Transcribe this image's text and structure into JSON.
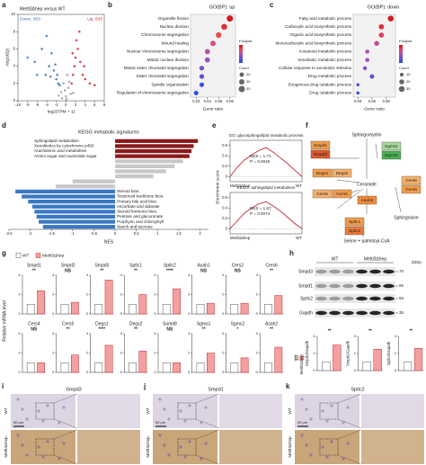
{
  "figure": {
    "panels": [
      "a",
      "b",
      "c",
      "d",
      "e",
      "f",
      "g",
      "h",
      "i",
      "j",
      "k"
    ]
  },
  "chart_data": [
    {
      "type": "scatter",
      "title": "Mettl3Δhep versus WT",
      "annotations": [
        "Down, 853",
        "Up, 833"
      ],
      "xlabel": "log2(TPM + 1)",
      "ylabel": "-log10(Q)",
      "xlim": [
        -10,
        8
      ],
      "xticks": [
        -10,
        -8,
        -6,
        -4,
        -2,
        0,
        2,
        4,
        6,
        8
      ],
      "ylim": [
        0,
        10
      ],
      "yticks": [
        0,
        2,
        4,
        6,
        8,
        10
      ],
      "series": [
        {
          "color": "#2f6fad",
          "x": [
            -8,
            -6.5,
            -5,
            -4.2,
            -3.5,
            -3,
            -2.5,
            -2,
            -1.6,
            -1.3,
            -4,
            -3.2,
            -2.2,
            -6,
            -1.8
          ],
          "values": [
            5,
            4.5,
            6,
            3,
            4,
            5.5,
            3.5,
            2.5,
            2,
            1.8,
            7.5,
            2.8,
            4.2,
            3,
            3
          ]
        },
        {
          "color": "#c0282d",
          "x": [
            1.2,
            1.5,
            1.8,
            2,
            2.5,
            3,
            3.5,
            4,
            5,
            6,
            2.2,
            1.4,
            3.8,
            2.8
          ],
          "values": [
            2,
            3,
            4,
            5,
            6,
            4.5,
            3,
            2.5,
            2,
            1.8,
            7,
            5.5,
            4,
            8
          ]
        },
        {
          "color": "#9e9e9e",
          "x": [
            -1,
            -0.5,
            0,
            0.5,
            1,
            -0.8,
            0.3,
            0.7,
            -0.2,
            0.1,
            -1.5,
            1.5
          ],
          "values": [
            1,
            2,
            0.5,
            1.5,
            0.8,
            0.3,
            3,
            2.2,
            1.2,
            0.2,
            0.6,
            0.9
          ]
        }
      ]
    },
    {
      "type": "dot",
      "title": "GO(BP): up",
      "xlabel": "Gene ratio",
      "xlim": [
        0.025,
        0.065
      ],
      "xticks": [
        0.03,
        0.04,
        0.05,
        0.06
      ],
      "categories": [
        "Organelle fission",
        "Nuclear division",
        "Chromosome segregation",
        "Wound healing",
        "Nuclear chromosome segregation",
        "Mitotic nuclear division",
        "Mitotic sister chromatid segregation",
        "Sister chromatid segregation",
        "Spindle organization",
        "Regulation of chromosome segregation"
      ],
      "values": [
        0.06,
        0.055,
        0.05,
        0.045,
        0.04,
        0.04,
        0.035,
        0.035,
        0.035,
        0.03
      ],
      "sizes": [
        40,
        36,
        33,
        30,
        27,
        26,
        23,
        22,
        22,
        20
      ],
      "colors": [
        "#d7191c",
        "#e0303a",
        "#e64a50",
        "#d94f8a",
        "#b850a8",
        "#9a50c0",
        "#7a52cc",
        "#5a50d6",
        "#3c4fe0",
        "#2c4ae8"
      ],
      "color_legend_title": "P.adjust",
      "size_legend_title": "Count",
      "size_legend": [
        20,
        30,
        40
      ]
    },
    {
      "type": "dot",
      "title": "GO(BP): down",
      "xlabel": "Gene ratio",
      "xlim": [
        0.02,
        0.11
      ],
      "xticks": [
        0.03,
        0.06,
        0.09
      ],
      "categories": [
        "Fatty acid metabolic process",
        "Carboxylic acid biosynthetic process",
        "Organic acid biosynthetic process",
        "Monocarboxylic acid biosynthetic process",
        "Icosanoid metabolic process",
        "Xenobiotic metabolic process",
        "Cellular response to xenobiotic stimulus",
        "Drug metabolic process",
        "Exogenous drug catabolic process",
        "Drug catabolic process"
      ],
      "values": [
        0.1,
        0.08,
        0.08,
        0.07,
        0.05,
        0.05,
        0.045,
        0.06,
        0.03,
        0.03
      ],
      "sizes": [
        35,
        28,
        28,
        25,
        18,
        17,
        16,
        21,
        10,
        10
      ],
      "colors": [
        "#d7191c",
        "#dd2e40",
        "#e04060",
        "#c84890",
        "#b050a8",
        "#9850bc",
        "#8052c8",
        "#6850d2",
        "#4a4fdc",
        "#2c4ae8"
      ],
      "color_legend_title": "P.adjust",
      "size_legend_title": "Count",
      "size_legend": [
        15,
        25,
        35
      ]
    },
    {
      "type": "hbar",
      "title": "KEGG metabolic signatures",
      "xlabel": "NES",
      "xlim": [
        -2.5,
        2.2
      ],
      "xticks": [
        -2.5,
        -2,
        -1.5,
        -1,
        -0.5,
        0,
        0.5,
        1,
        1.5,
        2
      ],
      "categories": [
        "Sphingolipid metabolism",
        "Xenobiotics by cytochrome p450",
        "Arachidonic acid metabolism",
        "Amino sugar and nucleotide sugar",
        null,
        null,
        null,
        null,
        null,
        null,
        "Steroid bios.",
        "Terpenoid backbone bios.",
        "Primary bile acid bios.",
        "Ascorbate and aldarate",
        "Steroid hormone bios.",
        "Pentose and glucuronate",
        "Porphyrin and chlorophyll",
        "Starch and sucrose"
      ],
      "values": [
        1.95,
        1.85,
        1.8,
        1.75,
        1.6,
        1.4,
        1.2,
        0.9,
        -1.0,
        -1.4,
        -2.35,
        -2.2,
        -2.05,
        -1.95,
        -1.9,
        -1.85,
        -1.8,
        -1.7
      ],
      "colors": [
        "#8b1a1a",
        "#8b1a1a",
        "#8b1a1a",
        "#8b1a1a",
        "#c8c8c8",
        "#c8c8c8",
        "#c8c8c8",
        "#c8c8c8",
        "#c8c8c8",
        "#c8c8c8",
        "#3a78c2",
        "#3a78c2",
        "#3a78c2",
        "#3a78c2",
        "#3a78c2",
        "#3a78c2",
        "#3a78c2",
        "#3a78c2"
      ]
    },
    {
      "type": "gsea",
      "title": "GO: glycosphingolipid metabolic process",
      "annotations": [
        "NES = 1.71",
        "P = 0.0045"
      ],
      "ylabel": "Enrichment score",
      "left_label": "Mettl3Δhep",
      "right_label": "WT",
      "color": "#c0282d",
      "xlim": [
        0,
        100
      ],
      "ylim": [
        -0.1,
        0.7
      ],
      "yticks": [
        0,
        0.2,
        0.4,
        0.6
      ],
      "x": [
        0,
        10,
        20,
        30,
        40,
        50,
        60,
        70,
        80,
        90,
        100
      ],
      "values": [
        0,
        0.18,
        0.32,
        0.42,
        0.5,
        0.56,
        0.47,
        0.36,
        0.25,
        0.12,
        0
      ]
    },
    {
      "type": "gsea",
      "title": "KEGG: sphingolipid metabolism",
      "annotations": [
        "NES = 1.67",
        "P = 0.0074"
      ],
      "left_label": "Mettl3Δhep",
      "right_label": "WT",
      "color": "#c0282d",
      "xlim": [
        0,
        100
      ],
      "ylim": [
        -0.1,
        0.7
      ],
      "yticks": [
        0,
        0.2,
        0.4,
        0.6
      ],
      "x": [
        0,
        10,
        20,
        30,
        40,
        50,
        60,
        70,
        80,
        90,
        100
      ],
      "values": [
        0,
        0.15,
        0.3,
        0.4,
        0.48,
        0.52,
        0.44,
        0.34,
        0.22,
        0.1,
        0
      ]
    },
    {
      "type": "bars",
      "ylabel": "Relative mRNA level",
      "legend": "top",
      "ylim": [
        0,
        4
      ],
      "yticks": [
        0,
        2,
        4
      ],
      "categories": [
        "Smpd1",
        "Smpd2",
        "Smpd3",
        "Sptlc1",
        "Sptlc2",
        "Asah1",
        "Cers2",
        "Cers6",
        "Cers4",
        "Cers5",
        "Degs1",
        "Degs2",
        "Samd8",
        "Sgms1",
        "Sgms2",
        "Asah2"
      ],
      "annotations": [
        "**",
        "NS",
        "**",
        "**",
        "****",
        "NS",
        "NS",
        "**",
        "NS",
        "**",
        "****",
        "**",
        "NS",
        "**",
        "*",
        "**"
      ],
      "series": [
        {
          "name": "WT",
          "color": "#ffffff",
          "values": [
            1,
            1,
            1,
            1,
            1,
            1,
            1,
            1,
            1,
            1,
            1,
            1,
            1,
            1,
            1,
            1
          ]
        },
        {
          "name": "Mettl3Δhep",
          "color": "#f4a0a0",
          "values": [
            2.4,
            1.2,
            3.5,
            2.0,
            2.6,
            1.1,
            1.1,
            1.9,
            1.0,
            1.8,
            2.8,
            2.2,
            1.0,
            2.0,
            1.5,
            2.6
          ]
        }
      ]
    },
    {
      "type": "bars",
      "legend": "left",
      "ylim": [
        0,
        4
      ],
      "yticks": [
        0,
        2,
        4
      ],
      "categories": [
        "Smpd3/Gapdh",
        "Smpd1/Gapdh",
        "Sptlc2/Gapdh"
      ],
      "annotations": [
        "**",
        "**",
        "**"
      ],
      "series": [
        {
          "name": "WT",
          "color": "#ffffff",
          "values": [
            1,
            1,
            1
          ]
        },
        {
          "name": "Mettl3Δhep",
          "color": "#f4a0a0",
          "values": [
            3.0,
            2.5,
            2.6
          ]
        }
      ]
    }
  ],
  "pathway": {
    "metabolites": [
      "Sphingomyelin",
      "Ceramide",
      "Sphingosine",
      "Serine + palmitoyl-CoA"
    ],
    "enzymes": [
      {
        "label": "Smpd1",
        "color": "#f39c4a"
      },
      {
        "label": "Smpd3",
        "color": "#e2572b"
      },
      {
        "label": "Sgms1",
        "color": "#a8d89a"
      },
      {
        "label": "Sgms2",
        "color": "#4caf50"
      },
      {
        "label": "Degs1",
        "color": "#f39c4a"
      },
      {
        "label": "Degs2",
        "color": "#f5b06a"
      },
      {
        "label": "Cers5",
        "color": "#f5b06a"
      },
      {
        "label": "Cers6",
        "color": "#f39c4a"
      },
      {
        "label": "Asah2",
        "color": "#ef8a3c"
      },
      {
        "label": "Cers5",
        "color": "#f5b06a"
      },
      {
        "label": "Cers6",
        "color": "#f39c4a"
      },
      {
        "label": "Sptlc1",
        "color": "#f39c4a"
      },
      {
        "label": "Sptlc2",
        "color": "#e87a36"
      }
    ]
  },
  "blot": {
    "groups": [
      "WT",
      "Mettl3Δhep"
    ],
    "unit": "(kDa)",
    "rows": [
      "Smpd3",
      "Smpd1",
      "Sptlc2",
      "Gapdh"
    ],
    "markers": [
      "70",
      "55",
      "55",
      "35"
    ]
  },
  "micrographs": {
    "rows": [
      "WT",
      "Mettl3Δhep"
    ],
    "scale_bar": "50 μm",
    "panels": [
      "Smpd3",
      "Smpd1",
      "Sptlc2"
    ]
  }
}
